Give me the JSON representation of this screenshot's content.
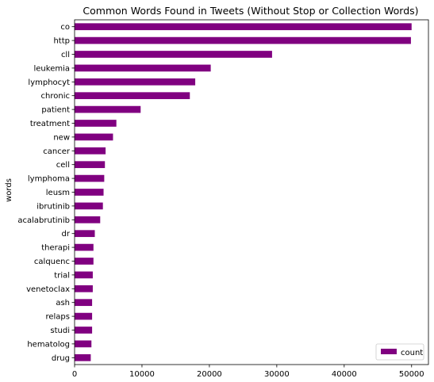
{
  "chart_data": {
    "type": "bar",
    "orientation": "horizontal",
    "title": "Common Words Found in Tweets (Without Stop or Collection Words)",
    "xlabel": "",
    "ylabel": "words",
    "xlim": [
      0,
      52500
    ],
    "x_ticks": [
      0,
      10000,
      20000,
      30000,
      40000,
      50000
    ],
    "grid": false,
    "legend_position": "lower-right",
    "bar_color": "#800080",
    "categories": [
      "co",
      "http",
      "cll",
      "leukemia",
      "lymphocyt",
      "chronic",
      "patient",
      "treatment",
      "new",
      "cancer",
      "cell",
      "lymphoma",
      "leusm",
      "ibrutinib",
      "acalabrutinib",
      "dr",
      "therapi",
      "calquenc",
      "trial",
      "venetoclax",
      "ash",
      "relaps",
      "studi",
      "hematolog",
      "drug"
    ],
    "series": [
      {
        "name": "count",
        "values": [
          50000,
          49900,
          29300,
          20200,
          17900,
          17100,
          9800,
          6200,
          5700,
          4600,
          4500,
          4400,
          4300,
          4200,
          3800,
          3000,
          2800,
          2800,
          2700,
          2700,
          2600,
          2600,
          2600,
          2500,
          2400
        ]
      }
    ]
  }
}
